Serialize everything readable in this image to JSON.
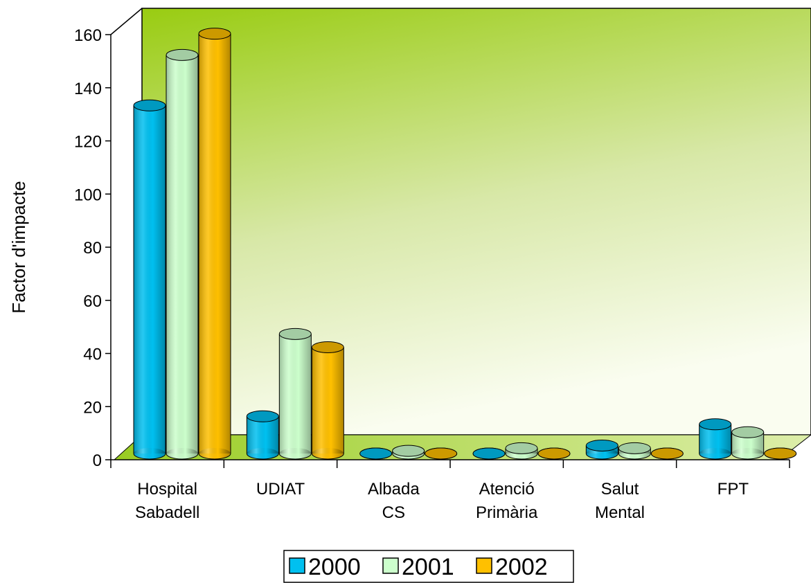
{
  "chart_data": {
    "type": "bar3d",
    "y_label": "Factor d'impacte",
    "categories": [
      "Hospital Sabadell",
      "UDIAT",
      "Albada CS",
      "Atenció Primària",
      "Salut Mental",
      "FPT"
    ],
    "series": [
      {
        "name": "2000",
        "color": "#00c0f0",
        "values": [
          131,
          14,
          0,
          0,
          3,
          11
        ]
      },
      {
        "name": "2001",
        "color": "#ccffcc",
        "values": [
          150,
          45,
          1,
          2,
          2,
          8
        ]
      },
      {
        "name": "2002",
        "color": "#ffc000",
        "values": [
          158,
          40,
          0,
          0,
          0,
          0
        ]
      }
    ],
    "ylim": [
      0,
      160
    ],
    "yticks": [
      0,
      20,
      40,
      60,
      80,
      100,
      120,
      140,
      160
    ]
  }
}
